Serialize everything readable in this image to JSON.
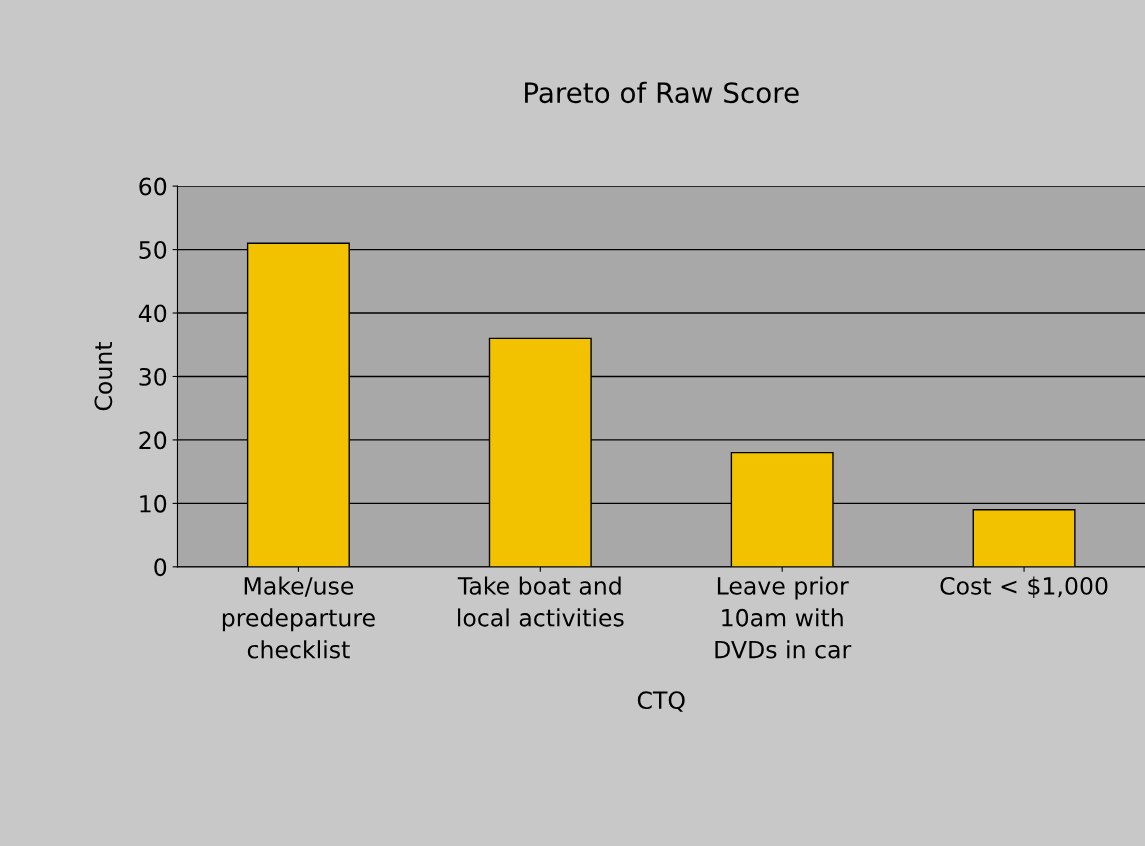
{
  "chart_data": {
    "type": "bar",
    "title": "Pareto of Raw Score",
    "xlabel": "CTQ",
    "ylabel": "Count",
    "categories": [
      "Make/use\npredeparture\nchecklist",
      "Take boat and\nlocal activities",
      "Leave prior\n10am with\nDVDs in car",
      "Cost < $1,000"
    ],
    "values": [
      51,
      36,
      18,
      9
    ],
    "color": "#f2c200",
    "ylim": [
      0,
      60
    ],
    "yticks": [
      0,
      10,
      20,
      30,
      40,
      50,
      60
    ],
    "grid": "y",
    "legend": false
  }
}
